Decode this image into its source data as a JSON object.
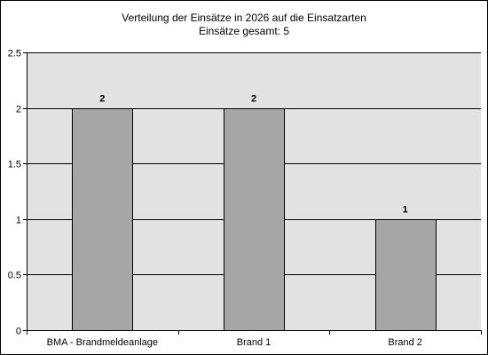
{
  "chart_data": {
    "type": "bar",
    "title": "Verteilung der Einsätze in 2026 auf die Einsatzarten",
    "subtitle": "Einsätze gesamt: 5",
    "categories": [
      "BMA - Brandmeldeanlage",
      "Brand 1",
      "Brand 2"
    ],
    "values": [
      2,
      2,
      1
    ],
    "data_labels": [
      "2",
      "2",
      "1"
    ],
    "ylim": [
      0,
      2.5
    ],
    "y_ticks": [
      0,
      0.5,
      1,
      1.5,
      2,
      2.5
    ],
    "y_tick_labels": [
      "0",
      "0.5",
      "1",
      "1.5",
      "2",
      "2.5"
    ],
    "grid": true,
    "legend": false,
    "colors": {
      "plot_background": "#e2e2e2",
      "bar_fill": "#a6a6a6",
      "bar_stroke": "#000000",
      "grid": "#000000",
      "axis": "#000000"
    }
  }
}
